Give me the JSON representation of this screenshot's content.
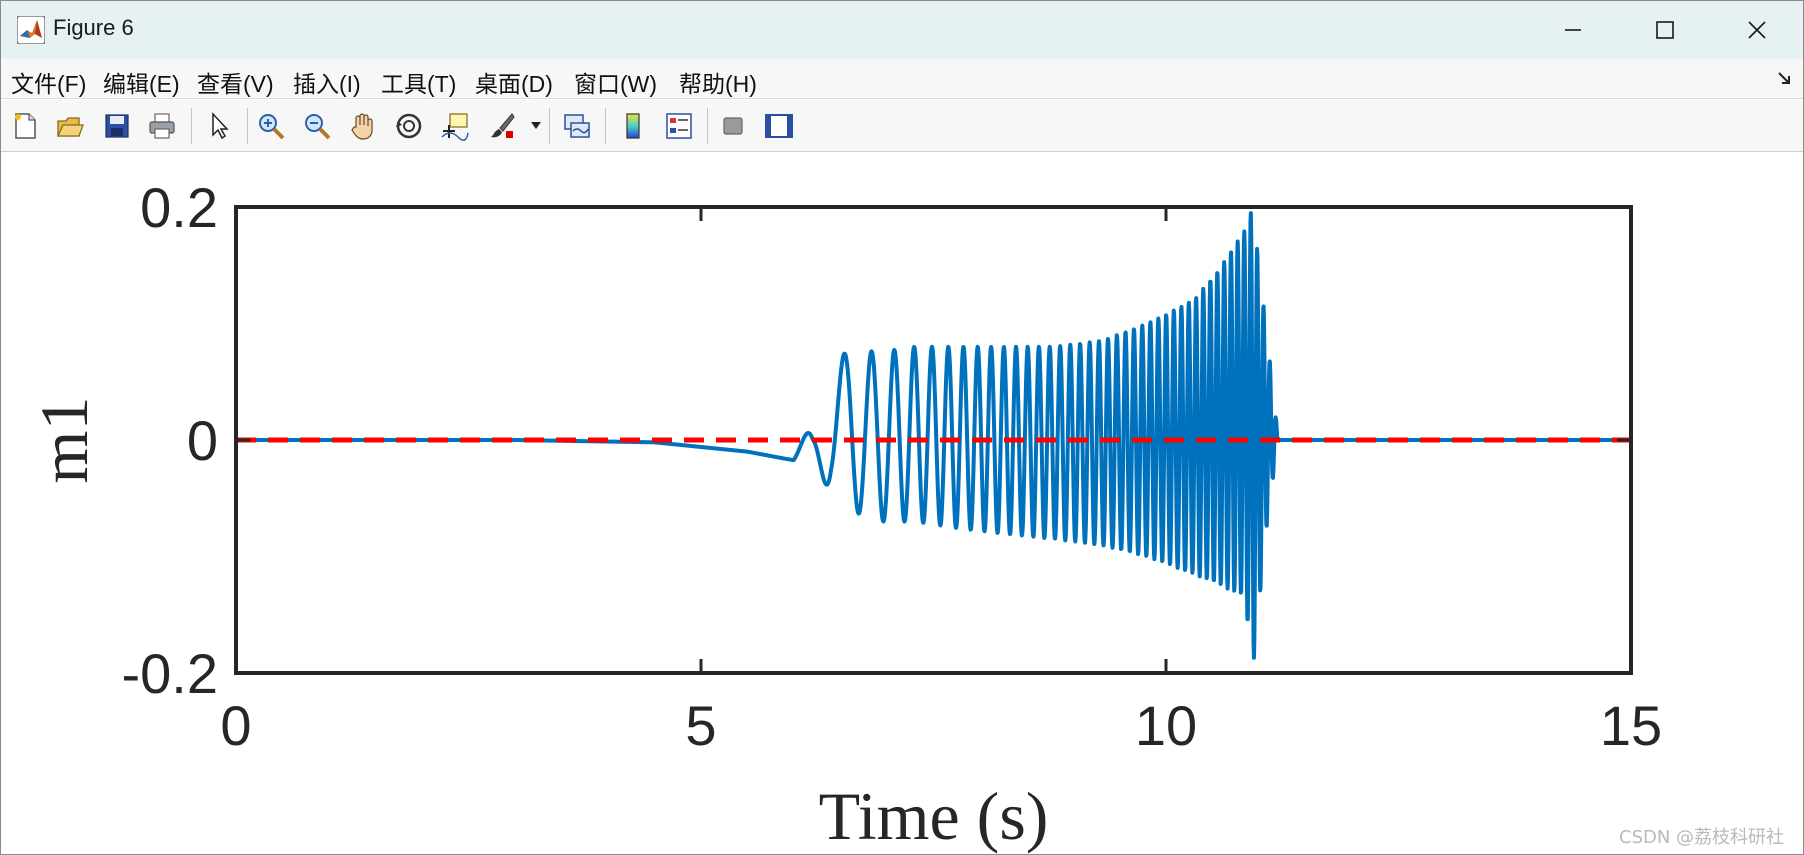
{
  "window": {
    "title": "Figure 6"
  },
  "menu": [
    {
      "label": "文件(F)",
      "id": "file"
    },
    {
      "label": "编辑(E)",
      "id": "edit"
    },
    {
      "label": "查看(V)",
      "id": "view"
    },
    {
      "label": "插入(I)",
      "id": "insert"
    },
    {
      "label": "工具(T)",
      "id": "tools"
    },
    {
      "label": "桌面(D)",
      "id": "desktop"
    },
    {
      "label": "窗口(W)",
      "id": "window"
    },
    {
      "label": "帮助(H)",
      "id": "help"
    }
  ],
  "toolbar_icons": [
    "new-figure-icon",
    "open-file-icon",
    "save-icon",
    "print-icon",
    "select-pointer-icon",
    "zoom-in-icon",
    "zoom-out-icon",
    "pan-hand-icon",
    "rotate-3d-icon",
    "data-cursor-icon",
    "brush-icon",
    "link-plot-icon",
    "colorbar-icon",
    "legend-icon",
    "hide-plot-tools-icon",
    "show-plot-tools-icon"
  ],
  "colors": {
    "series": "#0072bd",
    "reference": "#ff0000",
    "axis": "#262626",
    "titlebar": "#e6f1f4"
  },
  "watermark": "CSDN @荔枝科研社",
  "chart_data": {
    "type": "line",
    "xlabel": "Time (s)",
    "ylabel": "m1",
    "xlim": [
      0,
      15
    ],
    "ylim": [
      -0.2,
      0.2
    ],
    "xticks": [
      "0",
      "5",
      "10",
      "15"
    ],
    "yticks": [
      "0.2",
      "0",
      "-0.2"
    ],
    "grid": false,
    "box": true,
    "series": [
      {
        "style": "solid",
        "color": "#0072bd",
        "description_points": {
          "x": [
            0,
            3.0,
            4.5,
            5.5,
            5.9,
            6.2,
            6.4,
            6.6,
            6.9,
            7.3,
            7.7,
            8.2,
            8.8,
            9.3,
            9.8,
            10.3,
            10.6,
            10.85,
            10.93,
            11.1,
            11.2,
            12.0,
            15.0
          ],
          "upper_envelope": [
            0,
            0,
            -0.002,
            -0.01,
            -0.012,
            0.01,
            0.06,
            0.08,
            0.075,
            0.08,
            0.08,
            0.08,
            0.08,
            0.085,
            0.1,
            0.12,
            0.15,
            0.18,
            0.2,
            0.08,
            0.005,
            0,
            0
          ],
          "lower_envelope": [
            0,
            0,
            -0.002,
            -0.01,
            -0.02,
            -0.05,
            -0.035,
            -0.06,
            -0.07,
            -0.07,
            -0.075,
            -0.08,
            -0.085,
            -0.09,
            -0.1,
            -0.115,
            -0.125,
            -0.135,
            -0.2,
            -0.06,
            -0.005,
            0,
            0
          ]
        }
      },
      {
        "style": "dashed",
        "color": "#ff0000",
        "x": [
          0,
          15
        ],
        "y": [
          0,
          0
        ]
      }
    ]
  }
}
